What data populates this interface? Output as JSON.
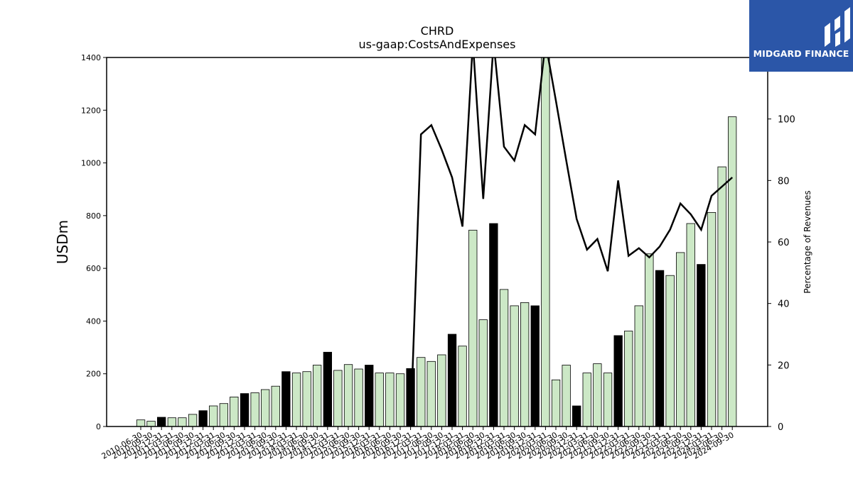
{
  "brand": {
    "name": "MIDGARD FINANCE",
    "bg_color": "#2b56a8"
  },
  "chart_data": {
    "type": "bar",
    "title": "CHRD",
    "subtitle": "us-gaap:CostsAndExpenses",
    "ylabel": "USDm",
    "y2label": "Percentage of Revenues",
    "ylim": [
      0,
      1400
    ],
    "y2lim": [
      0,
      120
    ],
    "yticks": [
      0,
      200,
      400,
      600,
      800,
      1000,
      1200,
      1400
    ],
    "y2ticks": [
      0,
      20,
      40,
      60,
      80,
      100
    ],
    "grid": false,
    "bar_colors": {
      "quarter": "#cce8c6",
      "fiscal_year_end": "#000000"
    },
    "line_color": "#000000",
    "categories": [
      "2010-06-30",
      "2010-09-30",
      "2010-12-31",
      "2011-03-31",
      "2011-06-30",
      "2011-09-30",
      "2011-12-31",
      "2012-03-31",
      "2012-06-30",
      "2012-09-30",
      "2012-12-31",
      "2013-03-31",
      "2013-06-30",
      "2013-09-30",
      "2013-12-31",
      "2014-03-31",
      "2014-06-30",
      "2014-09-30",
      "2014-12-31",
      "2015-03-31",
      "2015-06-30",
      "2015-09-30",
      "2015-12-31",
      "2016-03-31",
      "2016-06-30",
      "2016-09-30",
      "2016-12-31",
      "2017-03-31",
      "2017-06-30",
      "2017-09-30",
      "2017-12-31",
      "2018-03-31",
      "2018-06-30",
      "2018-09-30",
      "2018-12-31",
      "2019-03-31",
      "2019-06-30",
      "2019-09-30",
      "2019-12-31",
      "2020-03-31",
      "2020-06-30",
      "2020-09-30",
      "2020-12-31",
      "2021-03-31",
      "2021-06-30",
      "2021-09-30",
      "2021-12-31",
      "2022-03-31",
      "2022-06-30",
      "2022-09-30",
      "2022-12-31",
      "2023-03-31",
      "2023-06-30",
      "2023-09-30",
      "2023-12-31",
      "2024-03-31",
      "2024-06-30",
      "2024-09-30"
    ],
    "fiscal_year_end": [
      false,
      false,
      true,
      false,
      false,
      false,
      true,
      false,
      false,
      false,
      true,
      false,
      false,
      false,
      true,
      false,
      false,
      false,
      true,
      false,
      false,
      false,
      true,
      false,
      false,
      false,
      true,
      false,
      false,
      false,
      true,
      false,
      false,
      false,
      true,
      false,
      false,
      false,
      true,
      false,
      false,
      false,
      true,
      false,
      false,
      false,
      true,
      false,
      false,
      false,
      true,
      false,
      false,
      false,
      true,
      false,
      false,
      false
    ],
    "values": [
      25,
      20,
      35,
      33,
      33,
      46,
      60,
      78,
      87,
      112,
      125,
      128,
      140,
      153,
      208,
      203,
      208,
      233,
      282,
      213,
      235,
      218,
      233,
      203,
      203,
      200,
      220,
      262,
      247,
      272,
      350,
      305,
      745,
      405,
      770,
      520,
      458,
      470,
      458,
      1400,
      177,
      233,
      78,
      203,
      238,
      203,
      345,
      362,
      458,
      655,
      592,
      573,
      660,
      770,
      615,
      812,
      985,
      1175
    ],
    "percentage": [
      null,
      null,
      null,
      null,
      null,
      null,
      null,
      null,
      null,
      null,
      null,
      null,
      null,
      null,
      null,
      null,
      null,
      null,
      null,
      null,
      null,
      null,
      null,
      null,
      null,
      null,
      0,
      95,
      98,
      90,
      81,
      65,
      125,
      74,
      125,
      91,
      86.5,
      98,
      95,
      125,
      106,
      86.5,
      67.5,
      57.5,
      61,
      50.5,
      80,
      55.5,
      58,
      55,
      58.5,
      64,
      72.5,
      69,
      64,
      75,
      78,
      81
    ]
  }
}
